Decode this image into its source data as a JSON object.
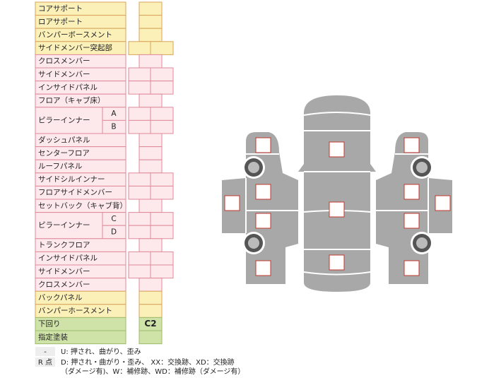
{
  "table": {
    "rows": [
      {
        "label": "コアサポート",
        "boxes": 1,
        "color": "yellow"
      },
      {
        "label": "ロアサポート",
        "boxes": 1,
        "color": "yellow"
      },
      {
        "label": "バンパーボースメント",
        "boxes": 1,
        "color": "yellow"
      },
      {
        "label": "サイドメンバー突起部",
        "boxes": 2,
        "color": "yellow"
      },
      {
        "label": "クロスメンバー",
        "boxes": 1,
        "color": "pink"
      },
      {
        "label": "サイドメンバー",
        "boxes": 2,
        "color": "pink"
      },
      {
        "label": "インサイドパネル",
        "boxes": 2,
        "color": "pink"
      },
      {
        "label": "フロア（キャブ床）",
        "boxes": 1,
        "color": "pink"
      },
      {
        "label": "ピラーインナー",
        "subs": [
          "A",
          "B"
        ],
        "boxes": 2,
        "color": "pink"
      },
      {
        "label": "ダッシュパネル",
        "boxes": 1,
        "color": "pink"
      },
      {
        "label": "センターフロア",
        "boxes": 1,
        "color": "pink"
      },
      {
        "label": "ルーフパネル",
        "boxes": 1,
        "color": "pink"
      },
      {
        "label": "サイドシルインナー",
        "boxes": 2,
        "color": "pink"
      },
      {
        "label": "フロアサイドメンバー",
        "boxes": 2,
        "color": "pink"
      },
      {
        "label": "セットバック（キャブ背）",
        "boxes": 1,
        "color": "pink"
      },
      {
        "label": "ピラーインナー",
        "subs": [
          "C",
          "D"
        ],
        "boxes": 2,
        "color": "pink"
      },
      {
        "label": "トランクフロア",
        "boxes": 1,
        "color": "pink"
      },
      {
        "label": "インサイドパネル",
        "boxes": 2,
        "color": "pink"
      },
      {
        "label": "サイドメンバー",
        "boxes": 2,
        "color": "pink"
      },
      {
        "label": "クロスメンバー",
        "boxes": 1,
        "color": "pink"
      },
      {
        "label": "バックパネル",
        "boxes": 1,
        "color": "yellow"
      },
      {
        "label": "バンパーホースメント",
        "boxes": 1,
        "color": "yellow"
      },
      {
        "label": "下回り",
        "boxes": 1,
        "color": "green",
        "value": "C2"
      },
      {
        "label": "指定塗装",
        "boxes": 1,
        "color": "green"
      }
    ]
  },
  "legend": [
    {
      "key": "-",
      "lines": [
        "U: 押され、曲がり、歪み"
      ]
    },
    {
      "key": "R 点",
      "lines": [
        "D: 押され・曲がり・歪み、 XX：交換跡、XD：交換跡",
        "（ダメージ有)、W：補修跡、WD：補修跡（ダメージ有）"
      ]
    }
  ]
}
